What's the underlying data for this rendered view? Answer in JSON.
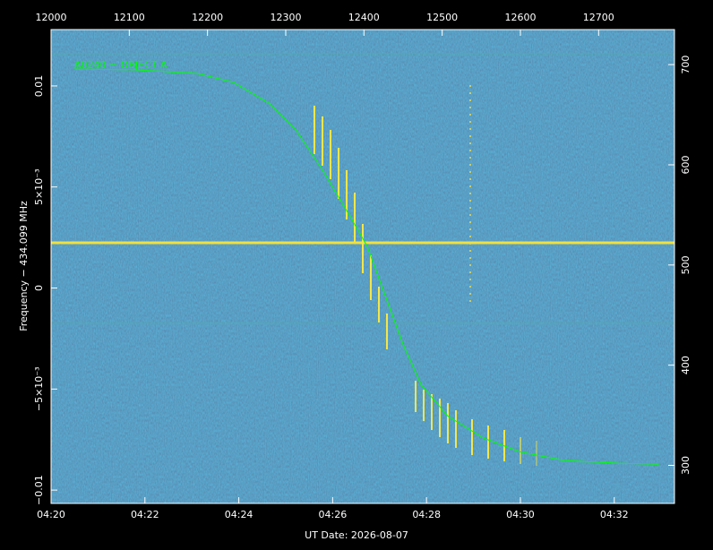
{
  "chart_data": {
    "type": "line",
    "x_label": "UT Date: 2026-08-07",
    "y_label": "Frequency − 434.099 MHz",
    "annotation": "A0240 − OBJECT A",
    "xlim": [
      12000,
      12797
    ],
    "ylim": [
      -0.01066,
      0.01279
    ],
    "y2lim": [
      262,
      735
    ],
    "xticks": [
      12000,
      12100,
      12200,
      12300,
      12400,
      12500,
      12600,
      12700
    ],
    "x_time_ticks": [
      {
        "value": 12000,
        "label": "04:20"
      },
      {
        "value": 12120,
        "label": "04:22"
      },
      {
        "value": 12240,
        "label": "04:24"
      },
      {
        "value": 12360,
        "label": "04:26"
      },
      {
        "value": 12480,
        "label": "04:28"
      },
      {
        "value": 12600,
        "label": "04:30"
      },
      {
        "value": 12720,
        "label": "04:32"
      }
    ],
    "yticks": [
      {
        "value": -0.01,
        "label": "−0.01"
      },
      {
        "value": -0.005,
        "label": "−5×10⁻³"
      },
      0,
      {
        "value": 0.005,
        "label": "5×10⁻³"
      },
      0.01
    ],
    "y2ticks": [
      300,
      400,
      500,
      600,
      700
    ],
    "series": [
      {
        "name": "A0240 − OBJECT A",
        "color": "#00ff00",
        "x": [
          12030,
          12107,
          12187,
          12233,
          12278,
          12313,
          12347,
          12381,
          12404,
          12427,
          12450,
          12473,
          12507,
          12553,
          12599,
          12656,
          12725,
          12777
        ],
        "values": [
          0.01084,
          0.0108,
          0.01062,
          0.01018,
          0.00916,
          0.00783,
          0.00584,
          0.00363,
          0.00208,
          -0.00035,
          -0.00279,
          -0.00478,
          -0.00633,
          -0.00743,
          -0.0081,
          -0.00854,
          -0.00867,
          -0.00872
        ]
      }
    ]
  }
}
